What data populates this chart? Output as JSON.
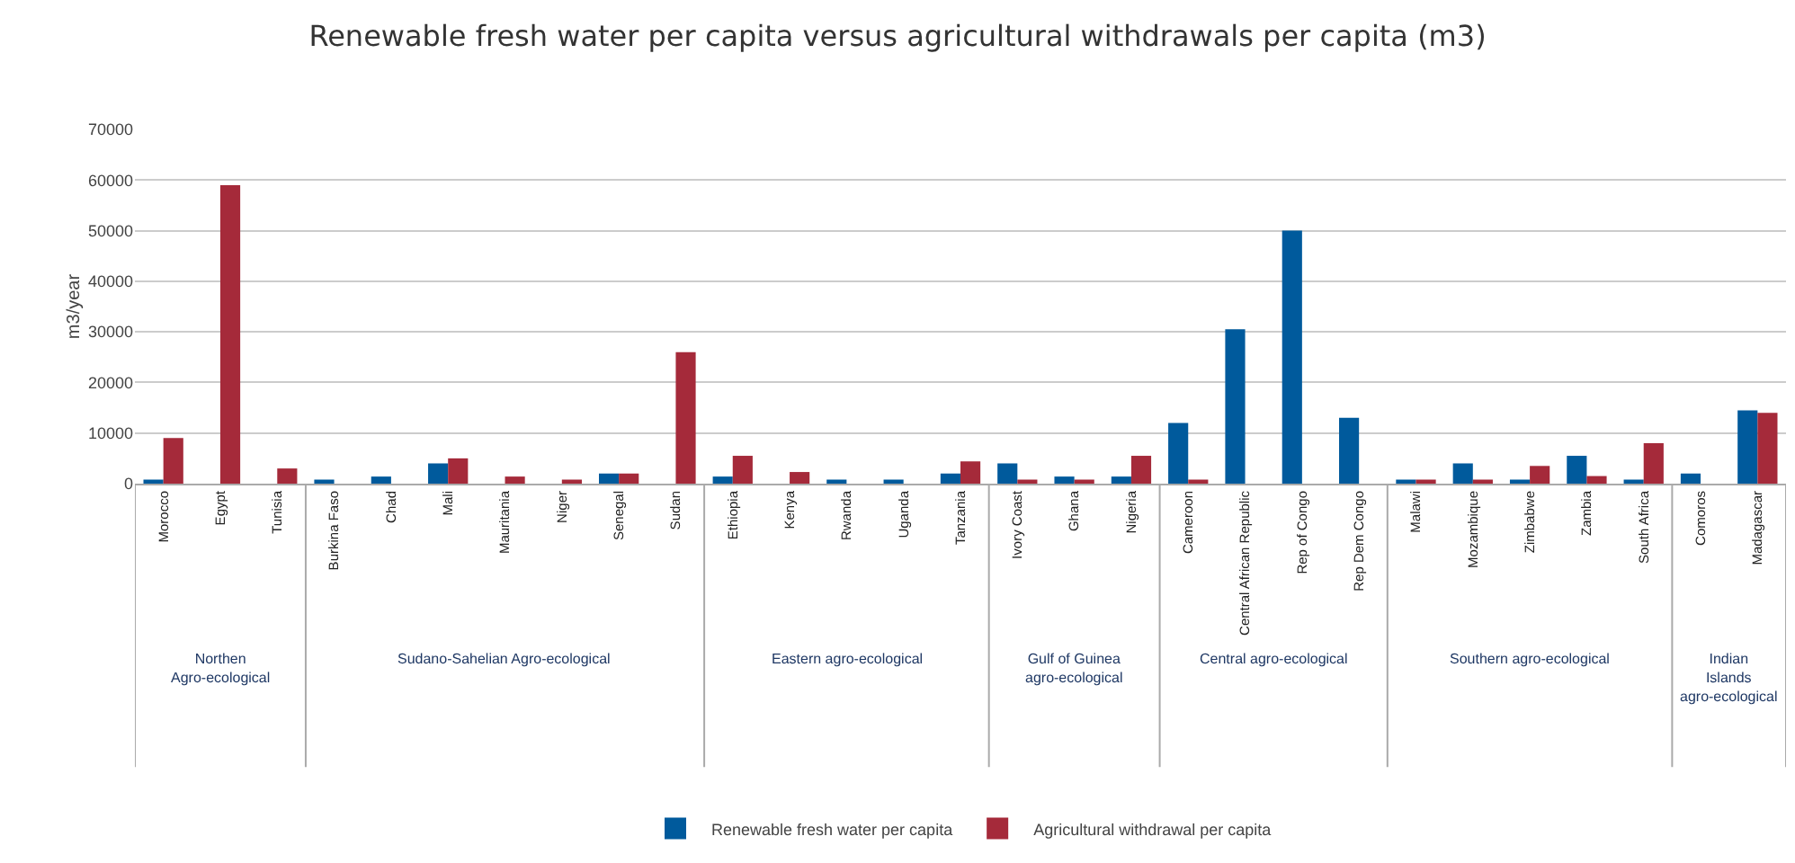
{
  "chart_data": {
    "type": "bar",
    "title": "Renewable fresh water per capita versus agricultural withdrawals per capita (m3)",
    "ylabel": "m3/year",
    "categories": [
      "Morocco",
      "Egypt",
      "Tunisia",
      "Burkina Faso",
      "Chad",
      "Mali",
      "Mauritania",
      "Niger",
      "Senegal",
      "Sudan",
      "Ethiopia",
      "Kenya",
      "Rwanda",
      "Uganda",
      "Tanzania",
      "Ivory Coast",
      "Ghana",
      "Nigeria",
      "Cameroon",
      "Central African Republic",
      "Rep of Congo",
      "Rep Dem Congo",
      "Malawi",
      "Mozambique",
      "Zimbabwe",
      "Zambia",
      "South Africa",
      "Comoros",
      "Madagascar"
    ],
    "series": [
      {
        "name": "Renewable fresh water per capita",
        "color": "#005a9c",
        "values": [
          800,
          0,
          0,
          800,
          1400,
          4000,
          0,
          0,
          2000,
          0,
          1400,
          0,
          800,
          800,
          2000,
          4000,
          1400,
          1400,
          12000,
          30500,
          50000,
          13000,
          800,
          4000,
          800,
          5500,
          800,
          2000,
          14500
        ]
      },
      {
        "name": "Agricultural withdrawal per capita",
        "color": "#a52a3a",
        "values": [
          9000,
          59000,
          3000,
          0,
          0,
          5000,
          1400,
          800,
          2000,
          26000,
          5500,
          2300,
          0,
          0,
          4400,
          800,
          800,
          5500,
          800,
          0,
          0,
          0,
          800,
          800,
          3500,
          1500,
          8000,
          0,
          14000
        ]
      }
    ],
    "annotations": [
      "Northen Agro-ecological",
      "Sudano-Sahelian Agro-ecological",
      "Eastern agro-ecological",
      "Gulf of Guinea agro-ecological",
      "Central agro-ecological",
      "Southern agro-ecological",
      "Indian Islands agro-ecological"
    ],
    "ylim": [
      0,
      70000
    ],
    "yticks": [
      0,
      10000,
      20000,
      30000,
      40000,
      50000,
      60000,
      70000
    ],
    "grid": "y",
    "legend": "bottom"
  }
}
